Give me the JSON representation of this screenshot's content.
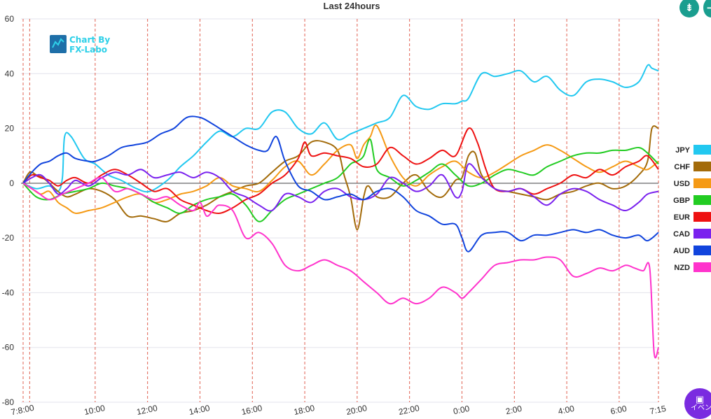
{
  "chart_data": {
    "type": "line",
    "title": "Last 24hours",
    "ylim": [
      -80,
      60
    ],
    "yticks": [
      60,
      40,
      20,
      0,
      -20,
      -40,
      -60,
      -80
    ],
    "xlim": [
      0,
      1455
    ],
    "x_tick_labels": [
      "7:8:00",
      "10:00",
      "12:00",
      "14:00",
      "16:00",
      "18:00",
      "20:00",
      "22:00",
      "0:00",
      "2:00",
      "4:00",
      "6:00",
      "7:15"
    ],
    "x_tick_minutes": [
      0,
      165,
      285,
      405,
      525,
      645,
      765,
      885,
      1005,
      1125,
      1245,
      1365,
      1455
    ],
    "vlines_minutes": [
      0,
      15,
      165,
      285,
      405,
      525,
      645,
      765,
      885,
      1005,
      1125,
      1245,
      1365,
      1455
    ],
    "grid": true,
    "legend_position": "right",
    "series": [
      {
        "name": "JPY",
        "color": "#22c8f0",
        "x": [
          0,
          30,
          60,
          80,
          90,
          95,
          110,
          140,
          165,
          195,
          225,
          260,
          290,
          330,
          360,
          390,
          420,
          450,
          480,
          510,
          540,
          570,
          600,
          630,
          660,
          690,
          720,
          750,
          780,
          810,
          840,
          870,
          900,
          930,
          960,
          990,
          1005,
          1020,
          1050,
          1080,
          1110,
          1140,
          1170,
          1200,
          1230,
          1260,
          1290,
          1320,
          1350,
          1380,
          1410,
          1430,
          1440,
          1455
        ],
        "y": [
          0,
          -2,
          -1,
          -3,
          2,
          17,
          17,
          9,
          7,
          3,
          1,
          -2,
          -3,
          1,
          6,
          10,
          15,
          19,
          17,
          20,
          20,
          26,
          26,
          20,
          18,
          22,
          16,
          18,
          20,
          22,
          24,
          32,
          28,
          27,
          29,
          29,
          30,
          31,
          40,
          39,
          40,
          41,
          37,
          39,
          34,
          32,
          37,
          38,
          37,
          35,
          37,
          43,
          42,
          41
        ]
      },
      {
        "name": "CHF",
        "color": "#a36b0a",
        "x": [
          0,
          15,
          30,
          45,
          60,
          80,
          100,
          120,
          150,
          180,
          210,
          240,
          270,
          300,
          330,
          360,
          390,
          420,
          450,
          480,
          510,
          540,
          570,
          600,
          630,
          660,
          690,
          720,
          735,
          750,
          765,
          780,
          790,
          810,
          840,
          870,
          900,
          930,
          960,
          990,
          1005,
          1020,
          1035,
          1050,
          1080,
          1110,
          1140,
          1170,
          1200,
          1230,
          1260,
          1290,
          1320,
          1350,
          1380,
          1410,
          1430,
          1440,
          1455
        ],
        "y": [
          0,
          4,
          3,
          2,
          0,
          -3,
          -5,
          -4,
          -2,
          -3,
          -6,
          -12,
          -12,
          -13,
          -14,
          -11,
          -10,
          -8,
          -5,
          -3,
          -1,
          0,
          4,
          8,
          10,
          15,
          15,
          12,
          3,
          -5,
          -17,
          -5,
          -1,
          -5,
          -5,
          0,
          3,
          -3,
          -5,
          1,
          2,
          10,
          11,
          3,
          -2,
          -3,
          -4,
          -5,
          -6,
          -4,
          -3,
          -1,
          0,
          -2,
          -1,
          3,
          8,
          20,
          20
        ]
      },
      {
        "name": "USD",
        "color": "#f59a15",
        "x": [
          0,
          20,
          40,
          60,
          80,
          100,
          120,
          150,
          180,
          210,
          240,
          270,
          300,
          330,
          360,
          390,
          420,
          450,
          480,
          510,
          540,
          570,
          600,
          630,
          660,
          690,
          720,
          750,
          765,
          780,
          795,
          810,
          840,
          870,
          900,
          930,
          960,
          990,
          1020,
          1050,
          1080,
          1110,
          1140,
          1170,
          1200,
          1230,
          1260,
          1290,
          1320,
          1350,
          1380,
          1410,
          1430,
          1455
        ],
        "y": [
          0,
          -2,
          -4,
          -3,
          -7,
          -9,
          -11,
          -10,
          -9,
          -7,
          -5,
          -4,
          -7,
          -6,
          -4,
          -3,
          -1,
          2,
          -1,
          -2,
          -3,
          1,
          6,
          8,
          3,
          7,
          12,
          14,
          9,
          14,
          17,
          21,
          10,
          2,
          -1,
          3,
          6,
          8,
          4,
          2,
          4,
          7,
          10,
          12,
          14,
          12,
          9,
          6,
          4,
          6,
          8,
          6,
          5,
          8
        ]
      },
      {
        "name": "GBP",
        "color": "#22cc22",
        "x": [
          0,
          30,
          60,
          90,
          120,
          150,
          180,
          210,
          240,
          270,
          300,
          330,
          360,
          390,
          420,
          450,
          480,
          510,
          540,
          570,
          600,
          630,
          660,
          690,
          720,
          750,
          765,
          780,
          795,
          810,
          840,
          870,
          900,
          930,
          960,
          990,
          1020,
          1050,
          1080,
          1110,
          1140,
          1170,
          1200,
          1230,
          1260,
          1290,
          1320,
          1350,
          1380,
          1410,
          1430,
          1455
        ],
        "y": [
          0,
          -5,
          -6,
          -4,
          -3,
          -2,
          0,
          -1,
          -2,
          -4,
          -7,
          -9,
          -11,
          -8,
          -6,
          -5,
          -4,
          -8,
          -14,
          -10,
          -6,
          -4,
          -2,
          0,
          2,
          7,
          8,
          10,
          16,
          5,
          2,
          -1,
          1,
          4,
          7,
          3,
          -1,
          0,
          3,
          5,
          4,
          3,
          6,
          8,
          10,
          11,
          11,
          12,
          12,
          13,
          11,
          7
        ]
      },
      {
        "name": "EUR",
        "color": "#ee1111",
        "x": [
          0,
          20,
          40,
          60,
          80,
          100,
          120,
          150,
          180,
          210,
          240,
          270,
          300,
          330,
          360,
          390,
          420,
          450,
          480,
          510,
          540,
          570,
          600,
          630,
          645,
          660,
          690,
          720,
          750,
          780,
          810,
          840,
          870,
          900,
          930,
          960,
          990,
          1020,
          1040,
          1060,
          1080,
          1110,
          1140,
          1170,
          1200,
          1230,
          1260,
          1290,
          1320,
          1350,
          1380,
          1410,
          1430,
          1455
        ],
        "y": [
          0,
          3,
          2,
          1,
          -1,
          1,
          2,
          0,
          3,
          5,
          3,
          0,
          -3,
          -2,
          -6,
          -8,
          -10,
          -11,
          -9,
          -6,
          -4,
          0,
          3,
          9,
          15,
          10,
          11,
          10,
          9,
          6,
          7,
          13,
          10,
          7,
          9,
          12,
          10,
          20,
          15,
          5,
          -2,
          -3,
          -2,
          -4,
          -2,
          0,
          3,
          2,
          5,
          3,
          6,
          8,
          10,
          5
        ]
      },
      {
        "name": "CAD",
        "color": "#7a22ee",
        "x": [
          0,
          20,
          40,
          60,
          80,
          100,
          120,
          150,
          180,
          210,
          240,
          270,
          300,
          330,
          360,
          390,
          420,
          450,
          480,
          510,
          540,
          570,
          600,
          630,
          660,
          690,
          720,
          750,
          780,
          810,
          840,
          870,
          900,
          930,
          960,
          990,
          1005,
          1020,
          1050,
          1080,
          1110,
          1140,
          1170,
          1200,
          1230,
          1260,
          1290,
          1320,
          1350,
          1380,
          1410,
          1430,
          1455
        ],
        "y": [
          0,
          2,
          3,
          0,
          -4,
          -2,
          1,
          -1,
          2,
          4,
          3,
          5,
          2,
          3,
          4,
          2,
          4,
          2,
          -3,
          -5,
          -8,
          -10,
          -4,
          -5,
          -7,
          -3,
          -2,
          -5,
          -6,
          -4,
          2,
          0,
          -3,
          -1,
          3,
          -5,
          -3,
          7,
          2,
          -2,
          -3,
          -2,
          -5,
          -8,
          -4,
          -2,
          -3,
          -6,
          -8,
          -10,
          -7,
          -4,
          -3
        ]
      },
      {
        "name": "AUD",
        "color": "#1144dd",
        "x": [
          0,
          20,
          40,
          60,
          80,
          100,
          120,
          150,
          165,
          195,
          225,
          255,
          285,
          315,
          345,
          375,
          405,
          430,
          450,
          480,
          510,
          540,
          560,
          580,
          600,
          630,
          660,
          690,
          720,
          750,
          780,
          810,
          840,
          870,
          900,
          930,
          960,
          990,
          1005,
          1020,
          1050,
          1080,
          1110,
          1140,
          1170,
          1200,
          1230,
          1260,
          1290,
          1320,
          1350,
          1380,
          1410,
          1430,
          1455
        ],
        "y": [
          0,
          4,
          7,
          8,
          10,
          11,
          9,
          8,
          8,
          10,
          13,
          14,
          15,
          18,
          20,
          24,
          24,
          22,
          20,
          17,
          14,
          12,
          12,
          17,
          8,
          -1,
          -3,
          -6,
          -5,
          -4,
          -6,
          -3,
          -2,
          -5,
          -10,
          -12,
          -15,
          -15,
          -20,
          -25,
          -19,
          -18,
          -18,
          -21,
          -19,
          -19,
          -18,
          -17,
          -18,
          -17,
          -19,
          -20,
          -19,
          -21,
          -18
        ]
      },
      {
        "name": "NZD",
        "color": "#ff33cc",
        "x": [
          0,
          30,
          60,
          90,
          120,
          150,
          180,
          210,
          240,
          270,
          300,
          330,
          360,
          390,
          405,
          420,
          435,
          450,
          480,
          510,
          540,
          570,
          600,
          630,
          660,
          690,
          720,
          750,
          780,
          810,
          840,
          870,
          900,
          930,
          960,
          990,
          1005,
          1020,
          1050,
          1080,
          1110,
          1140,
          1170,
          1200,
          1230,
          1260,
          1290,
          1320,
          1350,
          1380,
          1400,
          1420,
          1435,
          1445,
          1455
        ],
        "y": [
          0,
          -3,
          -6,
          -4,
          -2,
          0,
          2,
          -3,
          -2,
          -4,
          -6,
          -5,
          -8,
          -10,
          -7,
          -12,
          -10,
          -8,
          -10,
          -20,
          -18,
          -22,
          -30,
          -32,
          -30,
          -28,
          -30,
          -32,
          -36,
          -40,
          -44,
          -42,
          -44,
          -42,
          -38,
          -40,
          -42,
          -40,
          -35,
          -30,
          -29,
          -28,
          -28,
          -27,
          -28,
          -34,
          -33,
          -31,
          -32,
          -30,
          -31,
          -32,
          -31,
          -62,
          -60
        ]
      }
    ]
  },
  "logo": {
    "line1": "Chart By",
    "line2": "FX-Labo"
  },
  "controls": {
    "event_label": "イベン",
    "compress_icon": "⇟",
    "expand_icon": "⇥"
  }
}
